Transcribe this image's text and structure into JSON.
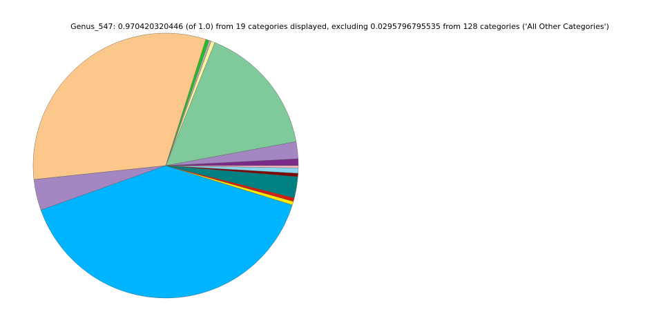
{
  "chart_data": {
    "type": "pie",
    "title": "Genus_547: 0.970420320446 (of 1.0) from 19 categories displayed, excluding 0.0295796795535 from 128 categories ('All Other Categories')",
    "values": [
      0.0083,
      0.0208,
      0.1606,
      0.0047,
      0.0028,
      0.0039,
      0.3156,
      0.0378,
      0.3975,
      0.0044,
      0.0044,
      0.0258,
      0.0042,
      0.0064,
      0.0028
    ],
    "colors": [
      "#7b2a8a",
      "#a487c2",
      "#80c99a",
      "#fff3a0",
      "#b0b0b0",
      "#22c122",
      "#fbc78a",
      "#a487c2",
      "#00b4ff",
      "#ffea00",
      "#d02010",
      "#008080",
      "#7a0a0a",
      "#87d4ee",
      "#ffb6c1"
    ]
  }
}
